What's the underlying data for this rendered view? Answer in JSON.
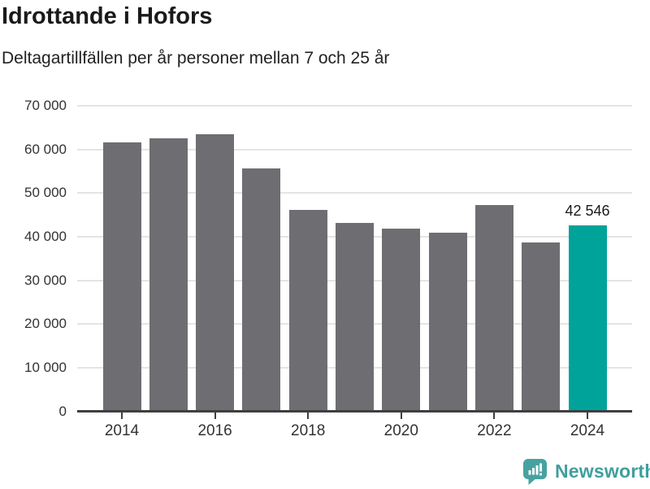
{
  "header": {
    "title": "Idrottande i Hofors",
    "subtitle": "Deltagartillfällen per år personer mellan 7 och 25 år"
  },
  "chart_data": {
    "type": "bar",
    "title": "Idrottande i Hofors",
    "subtitle": "Deltagartillfällen per år personer mellan 7 och 25 år",
    "xlabel": "",
    "ylabel": "",
    "categories": [
      "2014",
      "2015",
      "2016",
      "2017",
      "2018",
      "2019",
      "2020",
      "2021",
      "2022",
      "2023",
      "2024"
    ],
    "values": [
      61700,
      62600,
      63400,
      55600,
      46200,
      43200,
      41900,
      41000,
      47200,
      38700,
      42546
    ],
    "highlight_index": 10,
    "annotation": {
      "text": "42 546",
      "category": "2024"
    },
    "x_tick_labels": [
      "2014",
      "2016",
      "2018",
      "2020",
      "2022",
      "2024"
    ],
    "y_ticks": [
      0,
      10000,
      20000,
      30000,
      40000,
      50000,
      60000,
      70000
    ],
    "y_tick_labels": [
      "0",
      "10 000",
      "20 000",
      "30 000",
      "40 000",
      "50 000",
      "60 000",
      "70 000"
    ],
    "ylim": [
      0,
      70000
    ],
    "grid": "horizontal",
    "legend": "none",
    "colors": {
      "bar": "#6e6e72",
      "highlight": "#00a39a",
      "gridline": "#e4e4e4",
      "axis": "#3f3f3f",
      "tick_label": "#333333",
      "value_label": "#1a1a1a"
    }
  },
  "footer": {
    "brand": "Newsworthy",
    "brand_color": "#3f9f9d",
    "logo_icon": "bar-chart-speech-bubble-icon",
    "logo_color": "#46a2a0"
  }
}
